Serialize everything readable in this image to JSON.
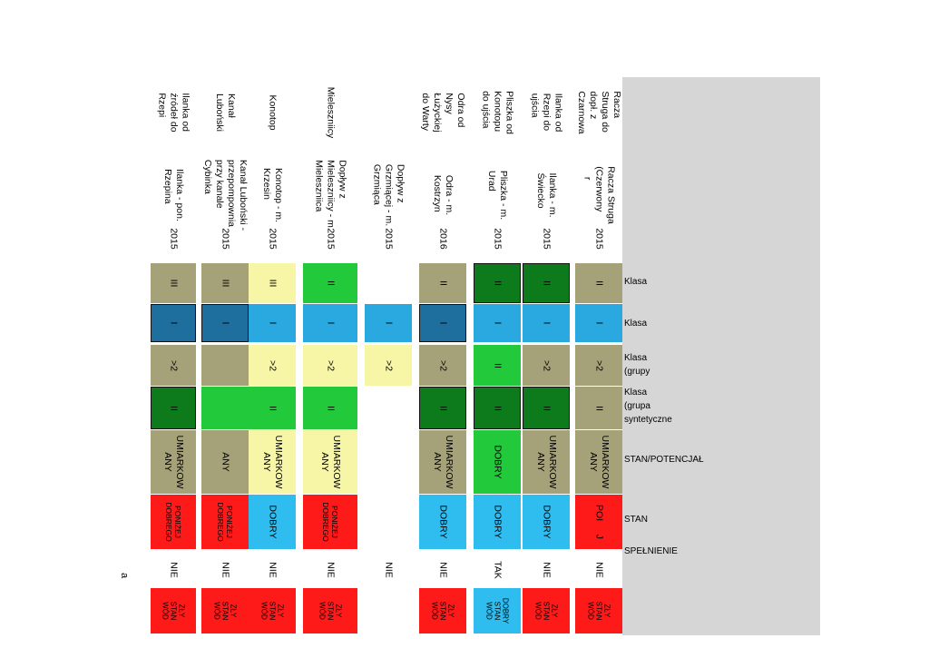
{
  "colors": {
    "olive": "#a5a178",
    "blue": "#2aa8e0",
    "steel": "#1e6e9e",
    "yellow": "#f7f6a6",
    "green": "#22c93a",
    "dark_green": "#0d7b1c",
    "red": "#ff1a1a",
    "light_blue": "#2fbdf0",
    "grey": "#d6d6d6"
  },
  "header_labels": {
    "klasa_1": "Klasa",
    "klasa_2": "Klasa",
    "klasa_grupy": "Klasa\n(grupy",
    "klasa_grupa": "Klasa\n(grupa\nsyntetyczne",
    "stan_potencjal": "STAN/POTENCJAŁ",
    "stan": "STAN",
    "spelnienie": "SPEŁNIENIE"
  },
  "footnote": "a",
  "rows": [
    {
      "river": "Racza\nStruga do\ndopł. z\nCzarnowa",
      "point": "Racza Struga\n(Czerwony\n    r",
      "year": "2015",
      "klasa_1": "II",
      "klasa_2": "I",
      "klasa_grupy": ">2",
      "klasa_grupa": "II",
      "stan_potencjal": "UMIARKOW\nANY",
      "stan": "POI     J",
      "spelnienie": "NIE",
      "last": "ZŁY\nSTAN\nWÓD"
    },
    {
      "river": "Ilanka od\nRzepi do\nujścia",
      "point": "Ilanka - m.\nŚwiecko",
      "year": "2015",
      "klasa_1": "II",
      "klasa_2": "I",
      "klasa_grupy": ">2",
      "klasa_grupa": "II",
      "stan_potencjal": "UMIARKOW\nANY",
      "stan": "DOBRY",
      "spelnienie": "NIE",
      "last": "ZŁY\nSTAN\nWÓD"
    },
    {
      "river": "Pliszka od\nKonotopu\ndo ujścia",
      "point": "Pliszka - m.\nUrad",
      "year": "2015",
      "klasa_1": "II",
      "klasa_2": "I",
      "klasa_grupy": "II",
      "klasa_grupa": "II",
      "stan_potencjal": "DOBRY",
      "stan": "DOBRY",
      "spelnienie": "TAK",
      "last": "DOBRY\nSTAN\nWÓD"
    },
    {
      "river": "Odra od\nNysy\nŁużyckiej\ndo Warty",
      "point": "Odra - m.\nKostrzyn",
      "year": "2016",
      "klasa_1": "II",
      "klasa_2": "I",
      "klasa_grupy": ">2",
      "klasa_grupa": "II",
      "stan_potencjal": "UMIARKOW\nANY",
      "stan": "DOBRY",
      "spelnienie": "NIE",
      "last": "ZŁY\nSTAN\nWÓD"
    },
    {
      "river": "",
      "point": "Dopływ z\nGrzmiącej - m.\nGrzmiąca",
      "year": "2015",
      "klasa_1": "",
      "klasa_2": "I",
      "klasa_grupy": ">2",
      "klasa_grupa": "",
      "stan_potencjal": "",
      "stan": "",
      "spelnienie": "NIE",
      "last": ""
    },
    {
      "river": "Mieleszniicy",
      "point": "Dopływ z\nMieleszniicy - m.\nMieleszniica",
      "year": "2015",
      "klasa_1": "II",
      "klasa_2": "I",
      "klasa_grupy": ">2",
      "klasa_grupa": "II",
      "stan_potencjal": "UMIARKOW\nANY",
      "stan": "PONIŻEJ\nDOBREGO",
      "spelnienie": "NIE",
      "last": "ZŁY\nSTAN\nWÓD"
    },
    {
      "river": "Konotop",
      "point": "Konotop - m.\nKrzesin",
      "year": "2015",
      "klasa_1": "III",
      "klasa_2": "I",
      "klasa_grupy": ">2",
      "klasa_grupa": "II",
      "stan_potencjal": "UMIARKOW\nANY",
      "stan": "DOBRY",
      "spelnienie": "NIE",
      "last": "ZŁY\nSTAN\nWÓD"
    },
    {
      "river": "Kanał\nLuboński",
      "point": "Kanał Luboński -\nprzepompownia\nprzy kanale\nCybinka",
      "year": "2015",
      "klasa_1": "III",
      "klasa_2": "I",
      "klasa_grupy": "",
      "klasa_grupa": "",
      "stan_potencjal": "ANY",
      "stan": "PONIŻEJ\nDOBREGO",
      "spelnienie": "NIE",
      "last": "ZŁY\nSTAN\nWÓD"
    },
    {
      "river": "Ilanka od\nźródeł do\nRzepi",
      "point": "Ilanka - pon.\nRzepina",
      "year": "2015",
      "klasa_1": "III",
      "klasa_2": "I",
      "klasa_grupy": ">2",
      "klasa_grupa": "II",
      "stan_potencjal": "UMIARKOW\nANY",
      "stan": "PONIŻEJ\nDOBREGO",
      "spelnienie": "NIE",
      "last": "ZŁY\nSTAN\nWÓD"
    }
  ]
}
